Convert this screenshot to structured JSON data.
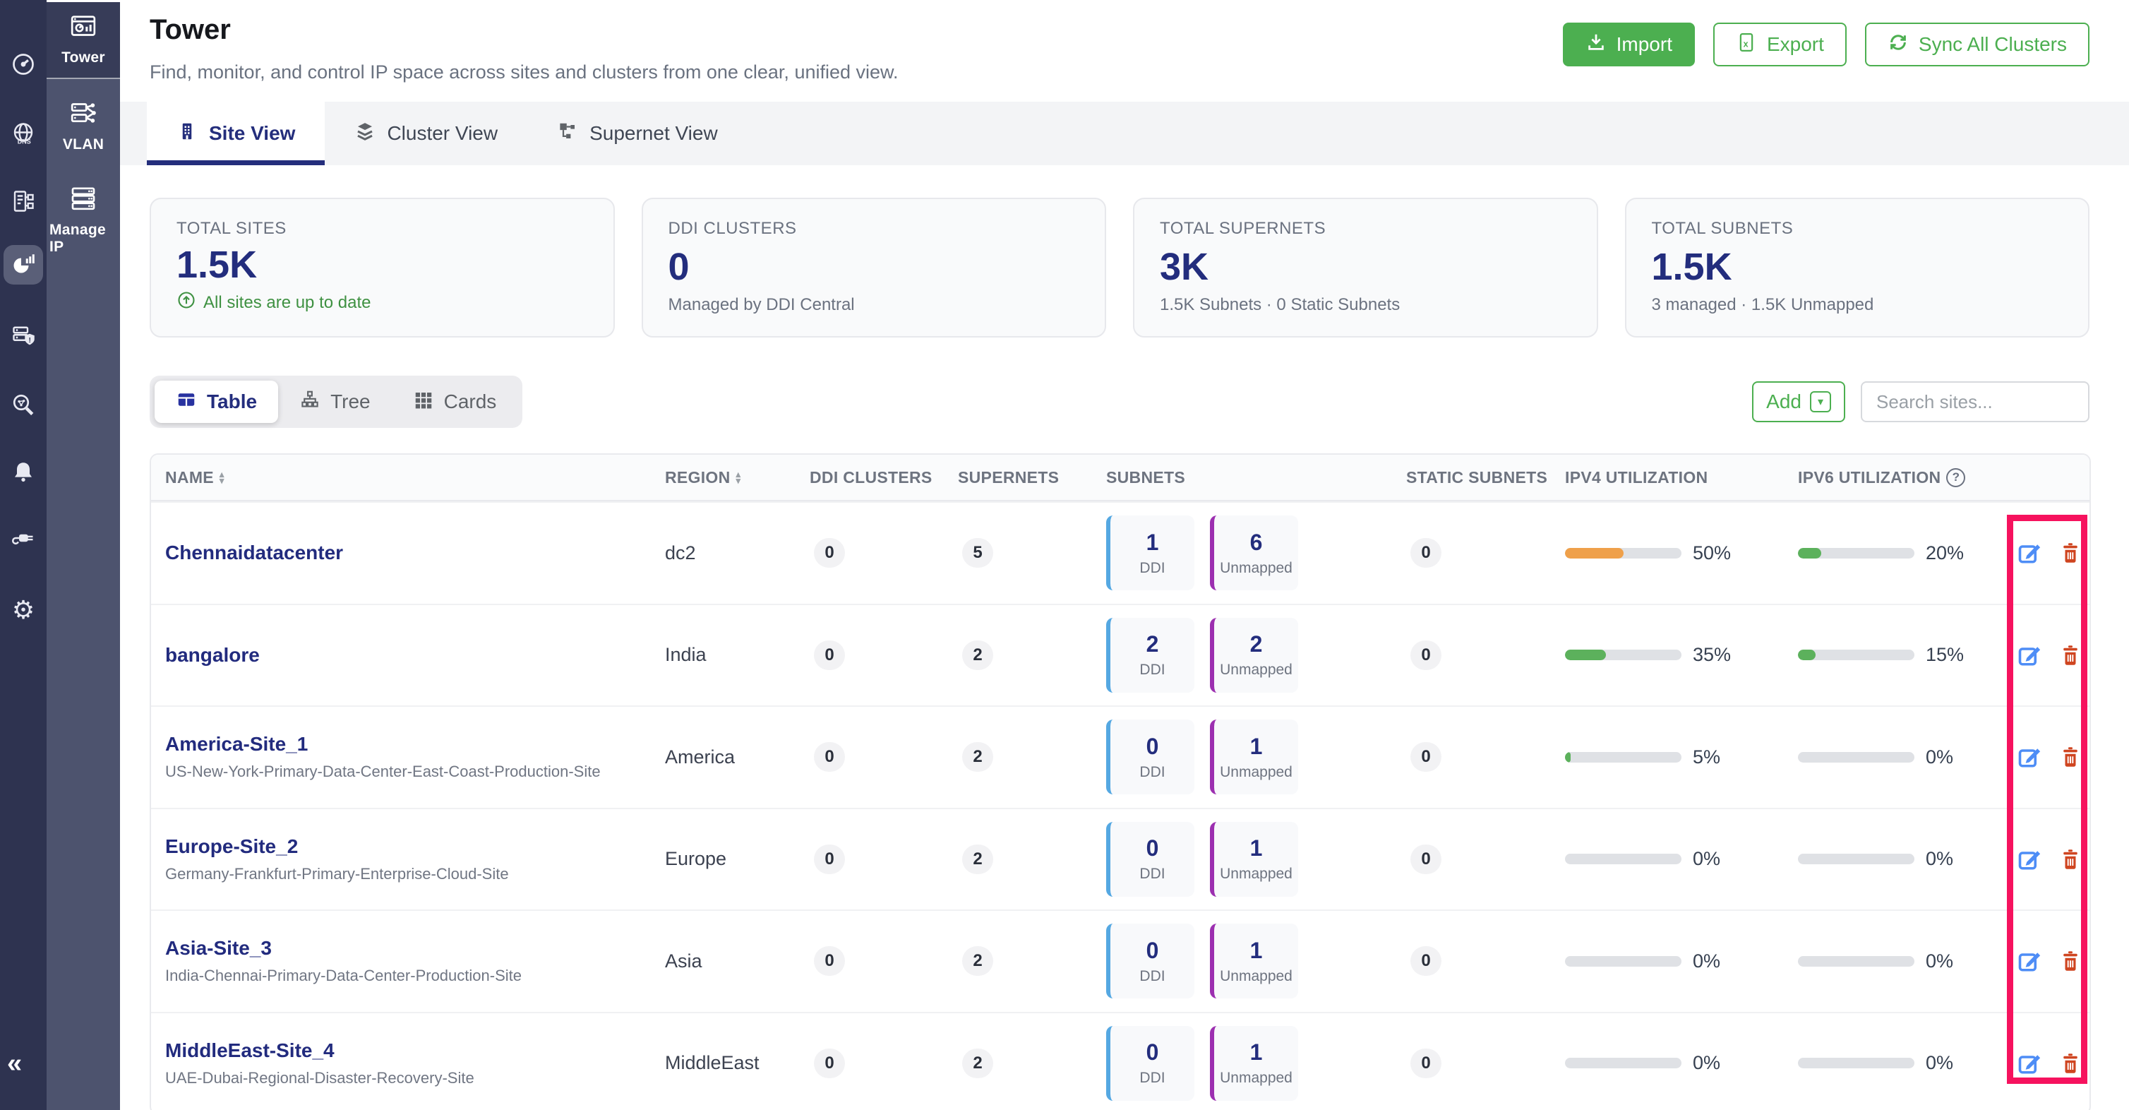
{
  "colors": {
    "accent_green": "#4caf50",
    "navy": "#232d7d",
    "highlight_pink": "#f6125e",
    "bar_orange": "#efa04a",
    "bar_green": "#5cb15c",
    "ddi_blue": "#55a8e2",
    "unmapped_purple": "#9c2fb0"
  },
  "rail": {
    "collapse_glyph": "«",
    "gear_glyph": "⚙"
  },
  "subnav": {
    "items": [
      {
        "label": "Tower",
        "active": true
      },
      {
        "label": "VLAN",
        "active": false
      },
      {
        "label": "Manage IP",
        "active": false
      }
    ]
  },
  "header": {
    "title": "Tower",
    "subtitle": "Find, monitor, and control IP space across sites and clusters from one clear, unified view.",
    "buttons": {
      "import": "Import",
      "export": "Export",
      "sync": "Sync All Clusters"
    }
  },
  "tabs": [
    {
      "label": "Site View",
      "active": true
    },
    {
      "label": "Cluster View",
      "active": false
    },
    {
      "label": "Supernet View",
      "active": false
    }
  ],
  "stats": [
    {
      "label": "TOTAL SITES",
      "value": "1.5K",
      "footer": "All sites are up to date"
    },
    {
      "label": "DDI CLUSTERS",
      "value": "0",
      "footer": "Managed by DDI Central"
    },
    {
      "label": "TOTAL SUPERNETS",
      "value": "3K",
      "footer": "1.5K Subnets · 0 Static Subnets"
    },
    {
      "label": "TOTAL SUBNETS",
      "value": "1.5K",
      "footer": "3 managed · 1.5K Unmapped"
    }
  ],
  "toolbar": {
    "views": [
      {
        "label": "Table",
        "active": true
      },
      {
        "label": "Tree",
        "active": false
      },
      {
        "label": "Cards",
        "active": false
      }
    ],
    "add_label": "Add",
    "search_placeholder": "Search sites..."
  },
  "table": {
    "columns": {
      "name": "NAME",
      "region": "REGION",
      "ddi_clusters": "DDI CLUSTERS",
      "supernets": "SUPERNETS",
      "subnets": "SUBNETS",
      "static_subnets": "STATIC SUBNETS",
      "ipv4": "IPV4 UTILIZATION",
      "ipv6": "IPV6 UTILIZATION"
    },
    "subnet_card_labels": {
      "ddi": "DDI",
      "unmapped": "Unmapped"
    },
    "rows": [
      {
        "name": "Chennaidatacenter",
        "subtitle": "",
        "region": "dc2",
        "ddi_clusters": "0",
        "supernets": "5",
        "subnets_ddi": "1",
        "subnets_unmapped": "6",
        "static_subnets": "0",
        "ipv4_pct": 50,
        "ipv4_label": "50%",
        "ipv4_color": "#efa04a",
        "ipv6_pct": 20,
        "ipv6_label": "20%",
        "ipv6_color": "#5cb15c"
      },
      {
        "name": "bangalore",
        "subtitle": "",
        "region": "India",
        "ddi_clusters": "0",
        "supernets": "2",
        "subnets_ddi": "2",
        "subnets_unmapped": "2",
        "static_subnets": "0",
        "ipv4_pct": 35,
        "ipv4_label": "35%",
        "ipv4_color": "#5cb15c",
        "ipv6_pct": 15,
        "ipv6_label": "15%",
        "ipv6_color": "#5cb15c"
      },
      {
        "name": "America-Site_1",
        "subtitle": "US-New-York-Primary-Data-Center-East-Coast-Production-Site",
        "region": "America",
        "ddi_clusters": "0",
        "supernets": "2",
        "subnets_ddi": "0",
        "subnets_unmapped": "1",
        "static_subnets": "0",
        "ipv4_pct": 5,
        "ipv4_label": "5%",
        "ipv4_color": "#5cb15c",
        "ipv6_pct": 0,
        "ipv6_label": "0%",
        "ipv6_color": "#5cb15c"
      },
      {
        "name": "Europe-Site_2",
        "subtitle": "Germany-Frankfurt-Primary-Enterprise-Cloud-Site",
        "region": "Europe",
        "ddi_clusters": "0",
        "supernets": "2",
        "subnets_ddi": "0",
        "subnets_unmapped": "1",
        "static_subnets": "0",
        "ipv4_pct": 0,
        "ipv4_label": "0%",
        "ipv4_color": "#5cb15c",
        "ipv6_pct": 0,
        "ipv6_label": "0%",
        "ipv6_color": "#5cb15c"
      },
      {
        "name": "Asia-Site_3",
        "subtitle": "India-Chennai-Primary-Data-Center-Production-Site",
        "region": "Asia",
        "ddi_clusters": "0",
        "supernets": "2",
        "subnets_ddi": "0",
        "subnets_unmapped": "1",
        "static_subnets": "0",
        "ipv4_pct": 0,
        "ipv4_label": "0%",
        "ipv4_color": "#5cb15c",
        "ipv6_pct": 0,
        "ipv6_label": "0%",
        "ipv6_color": "#5cb15c"
      },
      {
        "name": "MiddleEast-Site_4",
        "subtitle": "UAE-Dubai-Regional-Disaster-Recovery-Site",
        "region": "MiddleEast",
        "ddi_clusters": "0",
        "supernets": "2",
        "subnets_ddi": "0",
        "subnets_unmapped": "1",
        "static_subnets": "0",
        "ipv4_pct": 0,
        "ipv4_label": "0%",
        "ipv4_color": "#5cb15c",
        "ipv6_pct": 0,
        "ipv6_label": "0%",
        "ipv6_color": "#5cb15c"
      }
    ]
  }
}
